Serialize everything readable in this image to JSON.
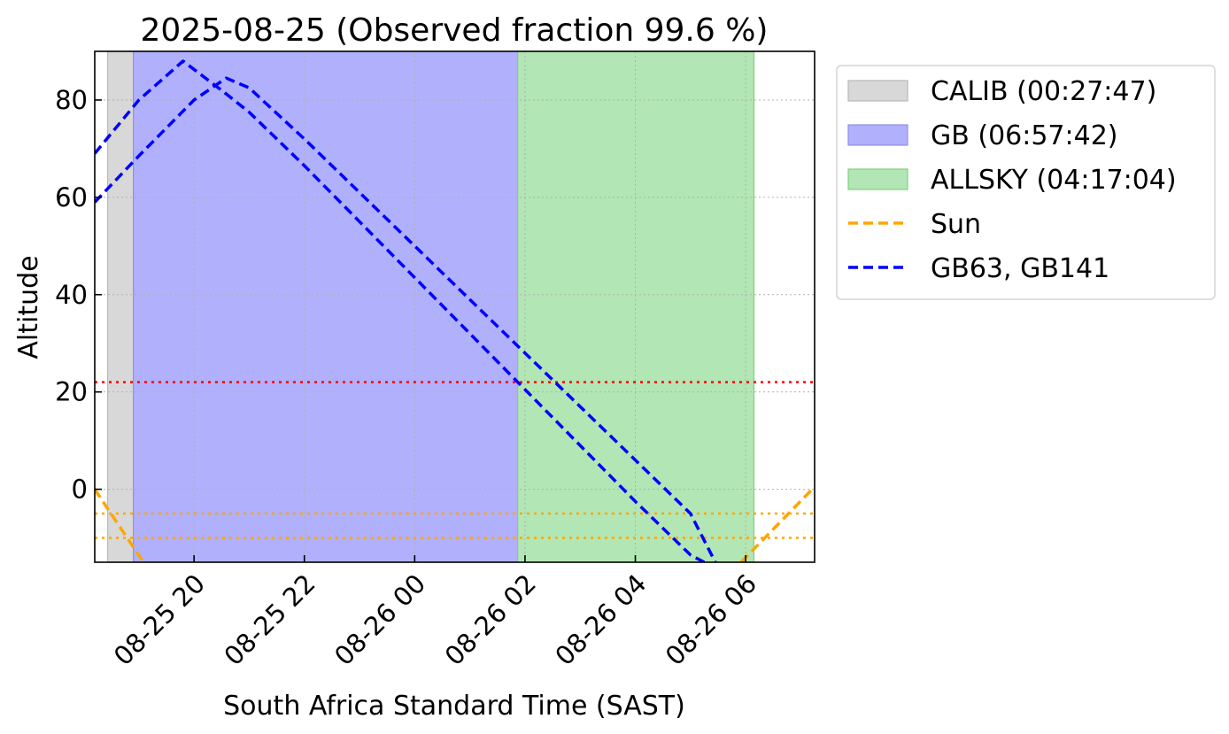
{
  "chart_data": {
    "type": "line",
    "title": "2025-08-25 (Observed fraction 99.6 %)",
    "xlabel": "South Africa Standard Time (SAST)",
    "ylabel": "Altitude",
    "x_range": [
      "2025-08-25 18:12",
      "2025-08-26 07:15"
    ],
    "ylim": [
      -15,
      90
    ],
    "grid": true,
    "grid_style": "dotted",
    "legend_position": "outside-right",
    "xticks": [
      {
        "value": "2025-08-25 20:00",
        "label": "08-25 20"
      },
      {
        "value": "2025-08-25 22:00",
        "label": "08-25 22"
      },
      {
        "value": "2025-08-26 00:00",
        "label": "08-26 00"
      },
      {
        "value": "2025-08-26 02:00",
        "label": "08-26 02"
      },
      {
        "value": "2025-08-26 04:00",
        "label": "08-26 04"
      },
      {
        "value": "2025-08-26 06:00",
        "label": "08-26 06"
      }
    ],
    "yticks": [
      0,
      20,
      40,
      60,
      80
    ],
    "spans": [
      {
        "label": "CALIB (00:27:47)",
        "start": "2025-08-25 18:26",
        "end": "2025-08-25 18:54",
        "color": "#d8d8d8",
        "edge": "#b8b8b8"
      },
      {
        "label": "GB (06:57:42)",
        "start": "2025-08-25 18:54",
        "end": "2025-08-26 01:52",
        "color": "#b0b0fd",
        "edge": "#8f8fec"
      },
      {
        "label": "ALLSKY (04:17:04)",
        "start": "2025-08-26 01:52",
        "end": "2025-08-26 06:09",
        "color": "#b2e6b4",
        "edge": "#7fd07f"
      }
    ],
    "hlines": [
      {
        "y": 22,
        "color": "#ff0000",
        "style": "dotted"
      },
      {
        "y": -5,
        "color": "#ffa500",
        "style": "dotted"
      },
      {
        "y": -10,
        "color": "#ffa500",
        "style": "dotted"
      }
    ],
    "series": [
      {
        "name": "Sun",
        "color": "#ffa500",
        "style": "dashed",
        "legend": true,
        "segments": [
          {
            "x": [
              "2025-08-25 18:12",
              "2025-08-25 19:05"
            ],
            "y": [
              0,
              -15
            ]
          },
          {
            "x": [
              "2025-08-26 05:55",
              "2025-08-26 07:15"
            ],
            "y": [
              -15,
              0.5
            ]
          }
        ]
      },
      {
        "name": "GB63, GB141",
        "color": "#0000ff",
        "style": "dashed",
        "legend": true,
        "x": [
          "2025-08-25 18:12",
          "2025-08-25 19:00",
          "2025-08-25 19:48",
          "2025-08-25 20:30",
          "2025-08-25 21:00",
          "2025-08-25 22:00",
          "2025-08-25 23:00",
          "2025-08-26 00:00",
          "2025-08-26 01:00",
          "2025-08-26 02:00",
          "2025-08-26 03:00",
          "2025-08-26 04:00",
          "2025-08-26 05:00",
          "2025-08-26 05:15"
        ],
        "y": [
          69,
          80,
          88,
          82,
          77.5,
          66.5,
          55,
          43.5,
          32,
          20.5,
          9,
          -2.5,
          -13.5,
          -15
        ]
      },
      {
        "name": "GB63, GB141",
        "color": "#0000ff",
        "style": "dashed",
        "legend": false,
        "x": [
          "2025-08-25 18:12",
          "2025-08-25 19:00",
          "2025-08-25 20:00",
          "2025-08-25 20:35",
          "2025-08-25 21:00",
          "2025-08-25 22:00",
          "2025-08-25 23:00",
          "2025-08-26 00:00",
          "2025-08-26 01:00",
          "2025-08-26 02:00",
          "2025-08-26 03:00",
          "2025-08-26 04:00",
          "2025-08-26 05:00",
          "2025-08-26 05:27"
        ],
        "y": [
          59,
          68.5,
          80,
          84.5,
          82.5,
          72,
          61,
          50,
          39,
          28,
          17,
          6,
          -5,
          -15
        ]
      }
    ]
  }
}
